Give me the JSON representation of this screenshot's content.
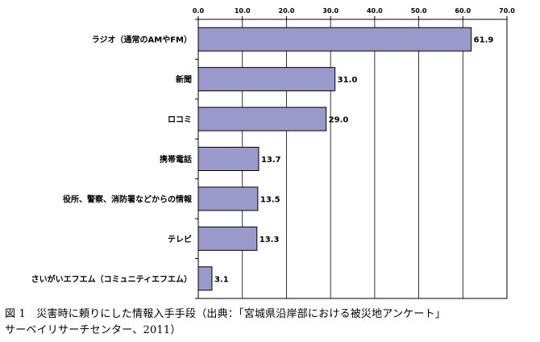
{
  "chart_data": {
    "type": "bar",
    "orientation": "horizontal",
    "categories": [
      "ラジオ（通常のAMやFM）",
      "新聞",
      "ロコミ",
      "携帯電話",
      "役所、警察、消防署などからの情報",
      "テレビ",
      "さいがいエフエム（コミュニティエフエム）"
    ],
    "values": [
      61.9,
      31.0,
      29.0,
      13.7,
      13.5,
      13.3,
      3.1
    ],
    "value_labels": [
      "61.9",
      "31.0",
      "29.0",
      "13.7",
      "13.5",
      "13.3",
      "3.1"
    ],
    "x_ticks": [
      "0.0",
      "10.0",
      "20.0",
      "30.0",
      "40.0",
      "50.0",
      "60.0",
      "70.0"
    ],
    "xlim": [
      0,
      70
    ],
    "x_axis_position": "top",
    "grid": true,
    "legend": false,
    "bar_color": "#9999cc",
    "bar_edge_color": "#000000"
  },
  "caption": {
    "line1": "図 1　災害時に頼りにした情報入手手段（出典：「宮城県沿岸部における被災地アンケート」",
    "line2": "サーベイリサーチセンター、2011）"
  }
}
